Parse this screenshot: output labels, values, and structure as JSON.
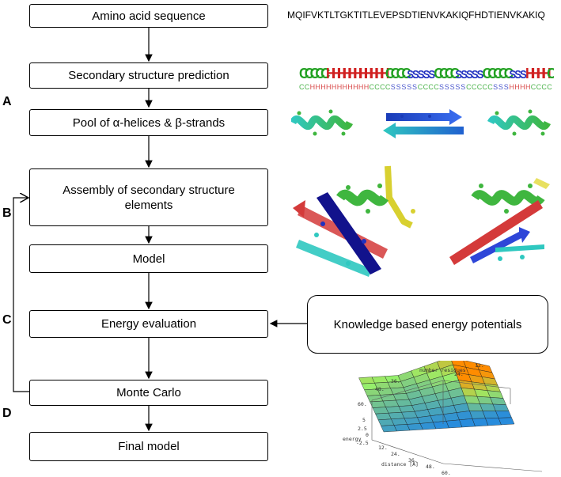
{
  "steps": {
    "amino": "Amino acid sequence",
    "secondary": "Secondary structure prediction",
    "pool": "Pool of α-helices & β-strands",
    "assembly_line1": "Assembly of secondary structure",
    "assembly_line2": "elements",
    "model": "Model",
    "energy": "Energy evaluation",
    "knowledge": "Knowledge based energy potentials",
    "monte_carlo": "Monte Carlo",
    "final": "Final model"
  },
  "labels": {
    "a": "A",
    "b": "B",
    "c": "C",
    "d": "D"
  },
  "sequence": "MQIFVKTLTGKTITLEVEPSDTIENVKAKIQFHDTIENVKAKIQ",
  "logo_letters": "CCCCCHHHHHHHHHHHCCCCSSSSSCCCCSSSSSCCCCCSSSHHHHC",
  "surface_plot": {
    "axis_labels": {
      "z": "number residues",
      "energy": "energy",
      "distance": "distance [Å]"
    },
    "ticks_number": [
      "12.",
      "24.",
      "36.",
      "48.",
      "60."
    ],
    "ticks_energy": [
      "5",
      "2.5",
      "0",
      "-2.5"
    ],
    "ticks_distance": [
      "12.",
      "24.",
      "36.",
      "48.",
      "60."
    ]
  },
  "colors": {
    "helix_green": "#3fb63f",
    "helix_cyan": "#2fc8c0",
    "strand_blue": "#2e46d8",
    "strand_red": "#d43a3a",
    "strand_yellow": "#d8d030",
    "strand_navy": "#12128c",
    "logo_red": "#d02020",
    "logo_blue": "#2030c0",
    "logo_green": "#20a020"
  }
}
